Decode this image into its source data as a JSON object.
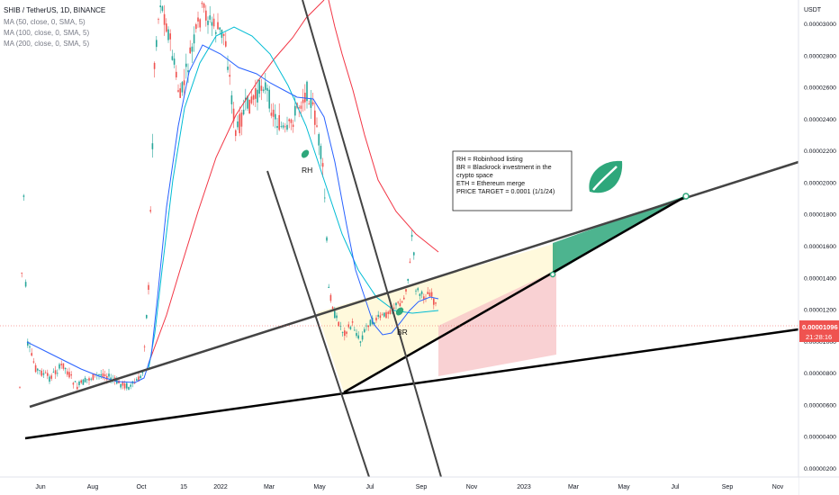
{
  "chart_data": {
    "type": "line",
    "symbol": "SHIB / TetherUS, 1D, BINANCE",
    "indicators": [
      "MA (50, close, 0, SMA, 5)",
      "MA (100, close, 0, SMA, 5)",
      "MA (200, close, 0, SMA, 5)"
    ],
    "y_unit": "USDT",
    "y_ticks": [
      "0.00003000",
      "0.00002800",
      "0.00002600",
      "0.00002400",
      "0.00002200",
      "0.00002000",
      "0.00001800",
      "0.00001600",
      "0.00001400",
      "0.00001200",
      "0.00001000",
      "0.00000800",
      "0.00000600",
      "0.00000400",
      "0.00000200"
    ],
    "y_values": [
      3e-05,
      2.8e-05,
      2.6e-05,
      2.4e-05,
      2.2e-05,
      2e-05,
      1.8e-05,
      1.6e-05,
      1.4e-05,
      1.2e-05,
      1e-05,
      8e-06,
      6e-06,
      4e-06,
      2e-06
    ],
    "x_ticks": [
      "Jun",
      "Aug",
      "Oct",
      "15",
      "2022",
      "Mar",
      "May",
      "Jul",
      "Sep",
      "Nov",
      "2023",
      "Mar",
      "May",
      "Jul",
      "Sep",
      "Nov"
    ],
    "current_price": "0.00001096",
    "countdown": "21:28:16",
    "colors": {
      "candle_up": "#26a69a",
      "candle_down": "#ef5350",
      "ma50": "#2962ff",
      "ma100": "#00bcd4",
      "ma200": "#f23645",
      "trendline": "#000000",
      "fill_green": "#2ea77b",
      "fill_red": "#f8c5c8",
      "fill_yellow": "#fff8d6"
    },
    "annotations": {
      "rh": "RH",
      "br": "BR",
      "legend_lines": [
        "RH = Robinhood listing",
        "BR = Blackrock investment in the",
        "crypto space",
        "ETH = Ethereum merge",
        "",
        "PRICE TARGET = 0.0001 (1/1/24)"
      ]
    }
  }
}
